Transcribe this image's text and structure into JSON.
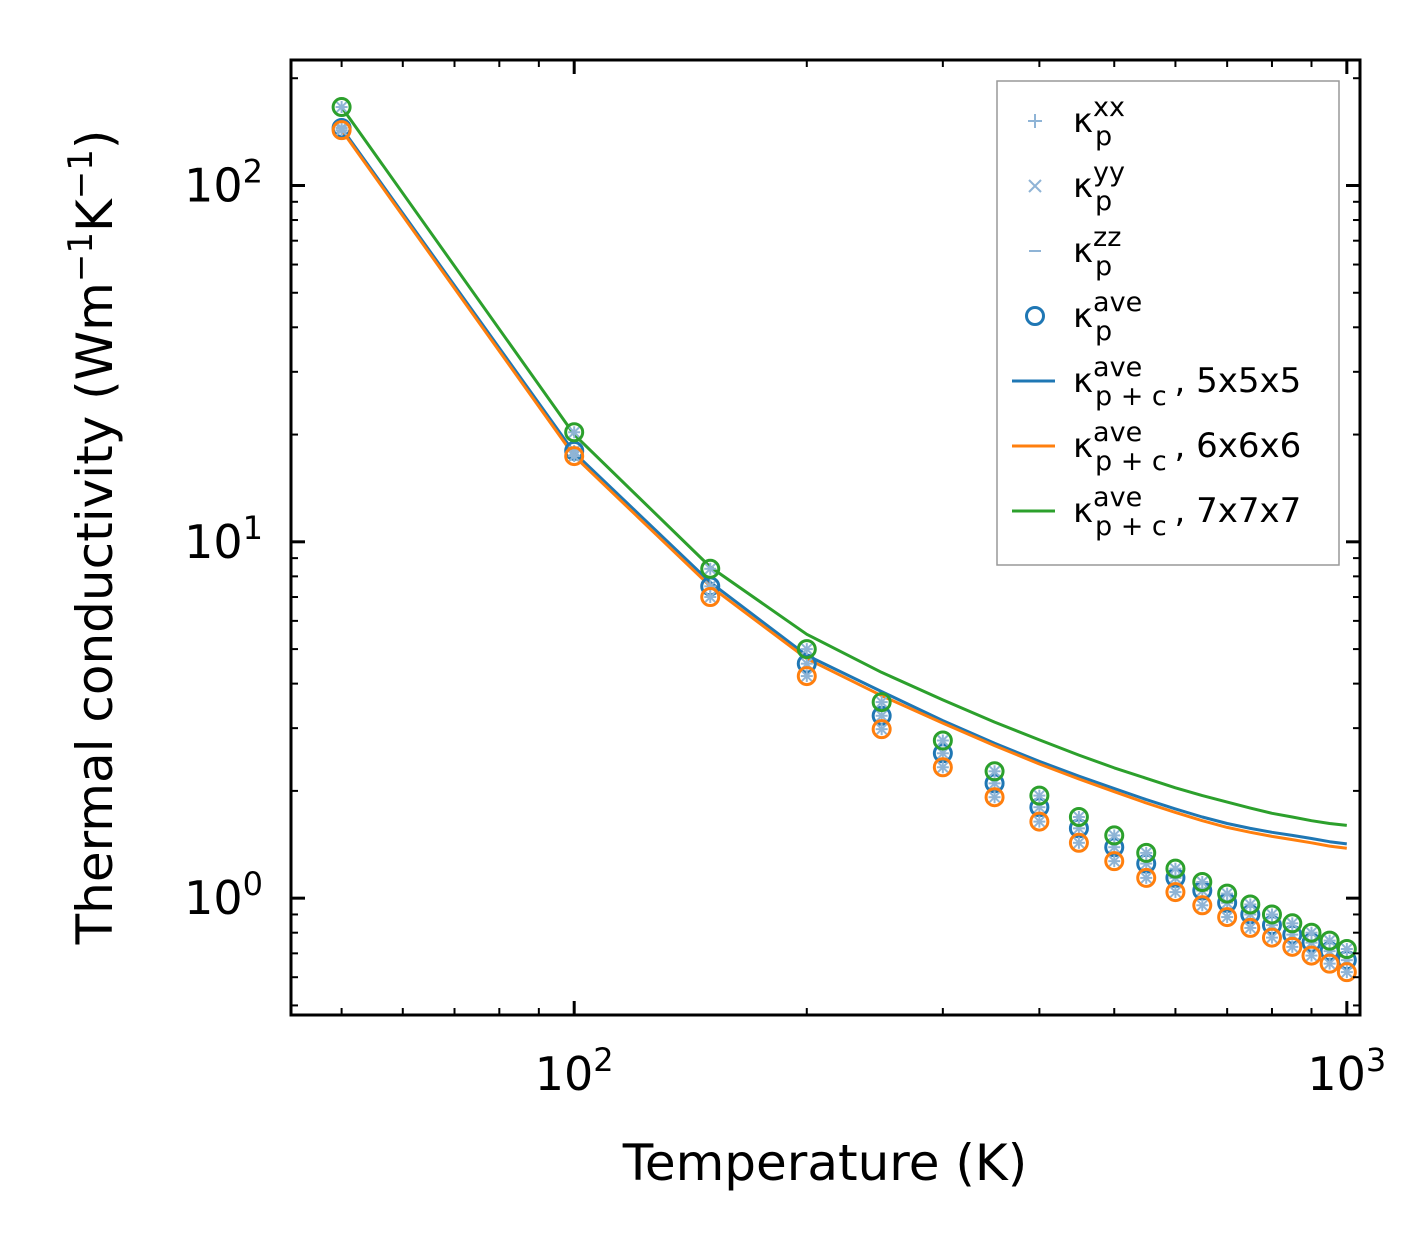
{
  "chart_data": {
    "type": "line",
    "xscale": "log",
    "yscale": "log",
    "xlabel": "Temperature (K)",
    "ylabel": "Thermal conductivity (Wm",
    "ylabel_sup1": "−1",
    "ylabel_mid": "K",
    "ylabel_sup2": "−1",
    "ylabel_end": ")",
    "xlim": [
      43,
      1040
    ],
    "ylim": [
      0.47,
      225
    ],
    "x_ticks": [
      {
        "value": 100,
        "base": "10",
        "exp": "2"
      },
      {
        "value": 1000,
        "base": "10",
        "exp": "3"
      }
    ],
    "y_ticks": [
      {
        "value": 1,
        "base": "10",
        "exp": "0"
      },
      {
        "value": 10,
        "base": "10",
        "exp": "1"
      },
      {
        "value": 100,
        "base": "10",
        "exp": "2"
      }
    ],
    "x": [
      50,
      100,
      150,
      200,
      250,
      300,
      350,
      400,
      450,
      500,
      550,
      600,
      650,
      700,
      750,
      800,
      850,
      900,
      950,
      1000
    ],
    "series": [
      {
        "name": "5x5x5",
        "color": "#1f77b4",
        "kappa_p_ave": [
          145,
          18.0,
          7.5,
          4.55,
          3.25,
          2.55,
          2.1,
          1.8,
          1.57,
          1.39,
          1.25,
          1.14,
          1.05,
          0.97,
          0.9,
          0.84,
          0.79,
          0.75,
          0.71,
          0.67
        ],
        "kappa_pc_ave": [
          145,
          17.8,
          7.7,
          4.8,
          3.8,
          3.15,
          2.72,
          2.42,
          2.2,
          2.03,
          1.89,
          1.78,
          1.69,
          1.62,
          1.57,
          1.53,
          1.5,
          1.47,
          1.44,
          1.42
        ]
      },
      {
        "name": "6x6x6",
        "color": "#ff7f0e",
        "kappa_p_ave": [
          143,
          17.4,
          7.0,
          4.2,
          2.98,
          2.33,
          1.92,
          1.64,
          1.43,
          1.27,
          1.14,
          1.04,
          0.955,
          0.885,
          0.825,
          0.775,
          0.73,
          0.69,
          0.655,
          0.62
        ],
        "kappa_pc_ave": [
          143,
          17.4,
          7.5,
          4.7,
          3.7,
          3.1,
          2.68,
          2.38,
          2.16,
          1.99,
          1.85,
          1.74,
          1.65,
          1.58,
          1.53,
          1.49,
          1.46,
          1.43,
          1.4,
          1.38
        ]
      },
      {
        "name": "7x7x7",
        "color": "#2ca02c",
        "kappa_p_ave": [
          166,
          20.3,
          8.4,
          5.0,
          3.55,
          2.77,
          2.27,
          1.94,
          1.69,
          1.5,
          1.34,
          1.21,
          1.11,
          1.03,
          0.96,
          0.9,
          0.85,
          0.8,
          0.76,
          0.72
        ],
        "kappa_pc_ave": [
          166,
          20.0,
          8.5,
          5.5,
          4.3,
          3.6,
          3.12,
          2.78,
          2.52,
          2.32,
          2.17,
          2.04,
          1.94,
          1.86,
          1.79,
          1.73,
          1.69,
          1.65,
          1.62,
          1.6
        ]
      }
    ],
    "legend": {
      "position": "top-right",
      "entries": [
        {
          "id": "xx",
          "kind": "plus",
          "color": "#8fb4d6",
          "base": "κ",
          "sup": "xx",
          "sub": "p",
          "suffix": ""
        },
        {
          "id": "yy",
          "kind": "cross",
          "color": "#8fb4d6",
          "base": "κ",
          "sup": "yy",
          "sub": "p",
          "suffix": ""
        },
        {
          "id": "zz",
          "kind": "dash",
          "color": "#8fb4d6",
          "base": "κ",
          "sup": "zz",
          "sub": "p",
          "suffix": ""
        },
        {
          "id": "ave",
          "kind": "circle",
          "color": "#1f77b4",
          "base": "κ",
          "sup": "ave",
          "sub": "p",
          "suffix": ""
        },
        {
          "id": "l5",
          "kind": "line",
          "color": "#1f77b4",
          "base": "κ",
          "sup": "ave",
          "sub": "p + c",
          "suffix": ", 5x5x5"
        },
        {
          "id": "l6",
          "kind": "line",
          "color": "#ff7f0e",
          "base": "κ",
          "sup": "ave",
          "sub": "p + c",
          "suffix": ", 6x6x6"
        },
        {
          "id": "l7",
          "kind": "line",
          "color": "#2ca02c",
          "base": "κ",
          "sup": "ave",
          "sub": "p + c",
          "suffix": ", 7x7x7"
        }
      ]
    }
  }
}
